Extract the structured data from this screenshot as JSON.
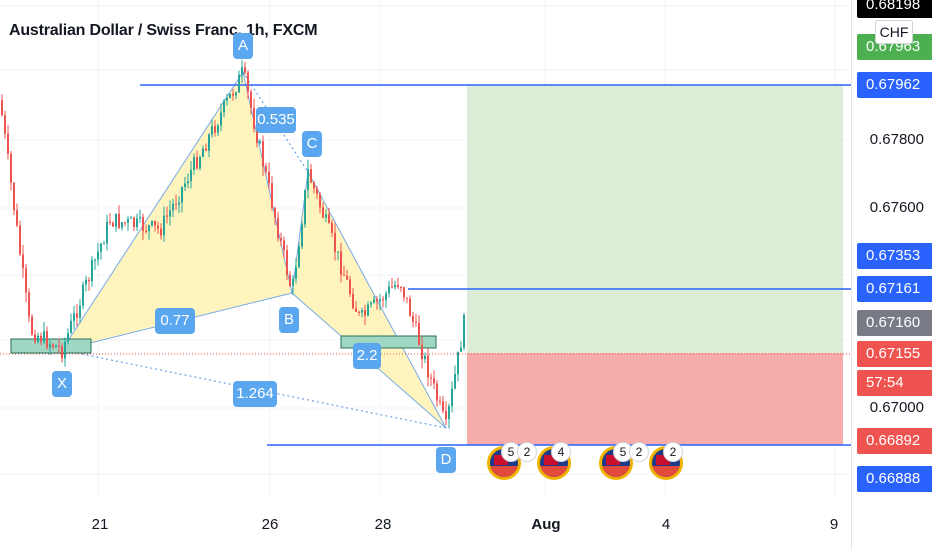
{
  "chart_data": {
    "type": "candlestick",
    "title": "Australian Dollar / Swiss Franc, 1h, FXCM",
    "currency": "CHF",
    "y_ticks": [
      "0.67800",
      "0.67600",
      "0.67000"
    ],
    "x_ticks": [
      {
        "label": "21",
        "bold": false
      },
      {
        "label": "26",
        "bold": false
      },
      {
        "label": "28",
        "bold": false
      },
      {
        "label": "Aug",
        "bold": true
      },
      {
        "label": "4",
        "bold": false
      },
      {
        "label": "9",
        "bold": false
      }
    ],
    "price_tags": [
      {
        "value": "0.68198",
        "color": "#000000"
      },
      {
        "value": "0.67963",
        "color": "#4caf50"
      },
      {
        "value": "0.67962",
        "color": "#2962ff"
      },
      {
        "value": "0.67353",
        "color": "#2962ff"
      },
      {
        "value": "0.67161",
        "color": "#2962ff"
      },
      {
        "value": "0.67160",
        "color": "#787b86"
      },
      {
        "value": "0.67155",
        "color": "#ef5350"
      },
      {
        "value": "57:54",
        "color": "#ef5350"
      },
      {
        "value": "0.66892",
        "color": "#ef5350"
      },
      {
        "value": "0.66888",
        "color": "#2962ff"
      }
    ],
    "harmonic_points": [
      {
        "label": "X",
        "price": 0.6716
      },
      {
        "label": "A",
        "price": 0.6796
      },
      {
        "label": "B",
        "price": 0.6722
      },
      {
        "label": "C",
        "price": 0.6769
      },
      {
        "label": "D",
        "price": 0.669
      }
    ],
    "ratios": [
      "0.535",
      "0.77",
      "2.2",
      "1.264"
    ],
    "levels": {
      "target": 0.67962,
      "entry": 0.67155,
      "stop": 0.66892,
      "mid": 0.67161
    },
    "events": [
      {
        "count": "5"
      },
      {
        "count": "2"
      },
      {
        "count": "4"
      },
      {
        "count": "5"
      },
      {
        "count": "2"
      },
      {
        "count": "2"
      }
    ]
  }
}
